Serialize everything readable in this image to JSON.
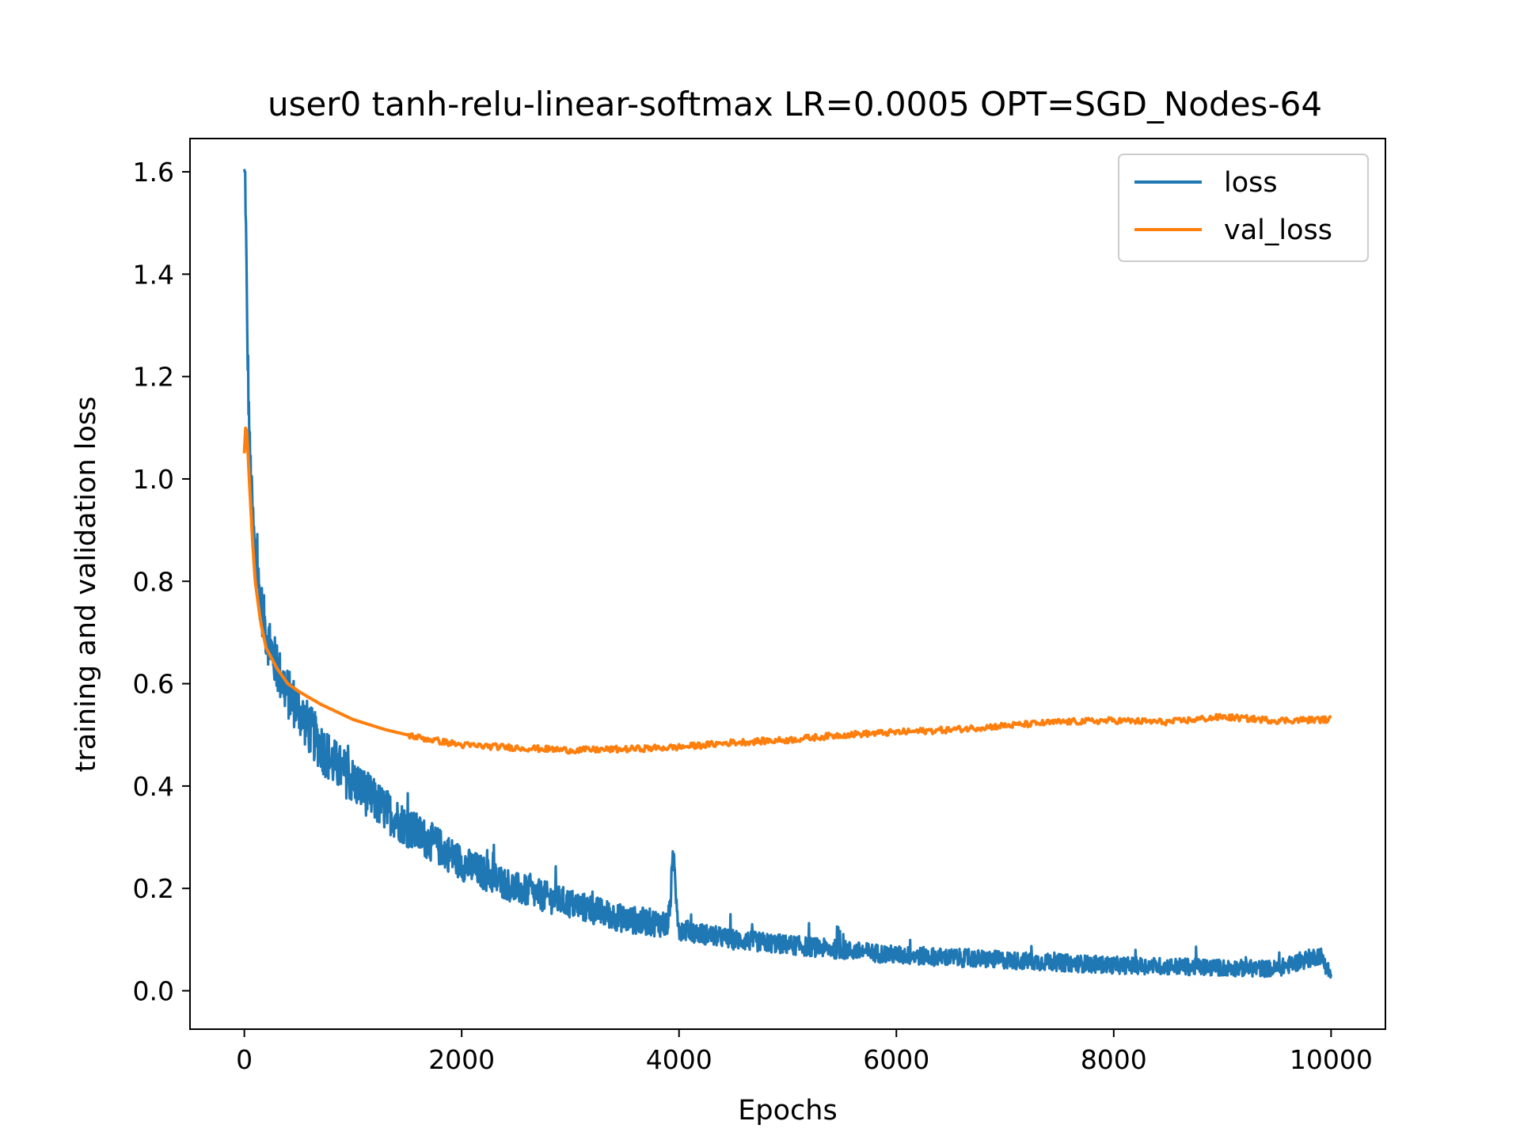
{
  "chart_data": {
    "type": "line",
    "title": "user0 tanh-relu-linear-softmax LR=0.0005 OPT=SGD_Nodes-64",
    "xlabel": "Epochs",
    "ylabel": "training and validation loss",
    "xlim": [
      -500,
      10500
    ],
    "ylim": [
      -0.075,
      1.665
    ],
    "xticks": [
      "0",
      "2000",
      "4000",
      "6000",
      "8000",
      "10000"
    ],
    "yticks": [
      "0.0",
      "0.2",
      "0.4",
      "0.6",
      "0.8",
      "1.0",
      "1.2",
      "1.4",
      "1.6"
    ],
    "legend_position": "top-right",
    "grid": false,
    "series": [
      {
        "name": "loss",
        "color": "#1f77b4",
        "x": [
          0,
          10,
          25,
          50,
          75,
          100,
          150,
          200,
          300,
          400,
          500,
          600,
          800,
          1000,
          1200,
          1500,
          1800,
          2000,
          2500,
          3000,
          3500,
          3900,
          3950,
          4000,
          4500,
          5000,
          5500,
          6000,
          6500,
          7000,
          7500,
          8000,
          8500,
          9000,
          9500,
          9900,
          10000
        ],
        "y": [
          1.59,
          1.58,
          1.3,
          1.05,
          0.93,
          0.85,
          0.76,
          0.7,
          0.63,
          0.58,
          0.55,
          0.51,
          0.45,
          0.41,
          0.37,
          0.32,
          0.28,
          0.25,
          0.2,
          0.17,
          0.14,
          0.13,
          0.26,
          0.12,
          0.1,
          0.09,
          0.08,
          0.07,
          0.065,
          0.06,
          0.055,
          0.05,
          0.048,
          0.045,
          0.043,
          0.07,
          0.03
        ],
        "noise_band": 0.05
      },
      {
        "name": "val_loss",
        "color": "#ff7f0e",
        "x": [
          0,
          10,
          25,
          50,
          75,
          100,
          150,
          200,
          300,
          400,
          500,
          700,
          1000,
          1300,
          1600,
          2000,
          2500,
          3000,
          3500,
          4000,
          4500,
          5000,
          5500,
          6000,
          6500,
          7000,
          7500,
          8000,
          8500,
          9000,
          9500,
          10000
        ],
        "y": [
          1.05,
          1.1,
          1.09,
          0.98,
          0.88,
          0.8,
          0.72,
          0.67,
          0.63,
          0.6,
          0.585,
          0.56,
          0.53,
          0.51,
          0.495,
          0.48,
          0.475,
          0.47,
          0.472,
          0.476,
          0.485,
          0.49,
          0.5,
          0.505,
          0.51,
          0.518,
          0.525,
          0.528,
          0.525,
          0.535,
          0.528,
          0.53
        ]
      }
    ]
  }
}
